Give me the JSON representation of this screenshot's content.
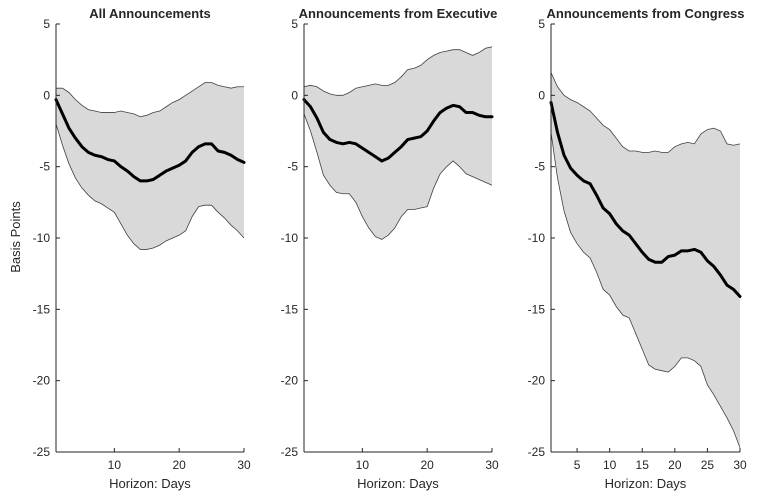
{
  "figure": {
    "ylabel": "Basis Points"
  },
  "colors": {
    "band_fill": "#d9d9d9",
    "band_edge": "#404040",
    "line": "#000000",
    "axis": "#262626"
  },
  "chart_data": [
    {
      "type": "area",
      "title": "All Announcements",
      "xlabel": "Horizon: Days",
      "ylabel": "Basis Points",
      "xlim": [
        1,
        30
      ],
      "ylim": [
        -25,
        5
      ],
      "xticks": [
        10,
        20,
        30
      ],
      "yticks": [
        5,
        0,
        -5,
        -10,
        -15,
        -20,
        -25
      ],
      "grid": false,
      "x": [
        1,
        2,
        3,
        4,
        5,
        6,
        7,
        8,
        9,
        10,
        11,
        12,
        13,
        14,
        15,
        16,
        17,
        18,
        19,
        20,
        21,
        22,
        23,
        24,
        25,
        26,
        27,
        28,
        29,
        30
      ],
      "series": [
        {
          "role": "point_estimate",
          "values": [
            -0.3,
            -1.3,
            -2.3,
            -3.0,
            -3.6,
            -4.0,
            -4.2,
            -4.3,
            -4.5,
            -4.6,
            -5.0,
            -5.3,
            -5.7,
            -6.0,
            -6.0,
            -5.9,
            -5.6,
            -5.3,
            -5.1,
            -4.9,
            -4.6,
            -4.0,
            -3.6,
            -3.4,
            -3.4,
            -3.9,
            -4.0,
            -4.2,
            -4.5,
            -4.7
          ]
        },
        {
          "role": "upper_bound",
          "values": [
            0.5,
            0.5,
            0.2,
            -0.3,
            -0.7,
            -1.0,
            -1.1,
            -1.2,
            -1.2,
            -1.2,
            -1.1,
            -1.2,
            -1.3,
            -1.5,
            -1.4,
            -1.2,
            -1.1,
            -0.8,
            -0.5,
            -0.3,
            0.0,
            0.3,
            0.6,
            0.9,
            0.9,
            0.7,
            0.6,
            0.5,
            0.6,
            0.6
          ]
        },
        {
          "role": "lower_bound",
          "values": [
            -2.0,
            -3.5,
            -4.8,
            -5.8,
            -6.5,
            -7.0,
            -7.4,
            -7.6,
            -7.9,
            -8.2,
            -9.0,
            -9.8,
            -10.4,
            -10.8,
            -10.8,
            -10.7,
            -10.5,
            -10.2,
            -10.0,
            -9.8,
            -9.5,
            -8.5,
            -7.8,
            -7.7,
            -7.7,
            -8.2,
            -8.6,
            -9.1,
            -9.5,
            -10.0
          ]
        }
      ]
    },
    {
      "type": "area",
      "title": "Announcements from Executive",
      "xlabel": "Horizon: Days",
      "ylabel": "",
      "xlim": [
        1,
        30
      ],
      "ylim": [
        -25,
        5
      ],
      "xticks": [
        10,
        20,
        30
      ],
      "yticks": [
        5,
        0,
        -5,
        -10,
        -15,
        -20,
        -25
      ],
      "grid": false,
      "x": [
        1,
        2,
        3,
        4,
        5,
        6,
        7,
        8,
        9,
        10,
        11,
        12,
        13,
        14,
        15,
        16,
        17,
        18,
        19,
        20,
        21,
        22,
        23,
        24,
        25,
        26,
        27,
        28,
        29,
        30
      ],
      "series": [
        {
          "role": "point_estimate",
          "values": [
            -0.3,
            -0.8,
            -1.6,
            -2.6,
            -3.1,
            -3.3,
            -3.4,
            -3.3,
            -3.4,
            -3.7,
            -4.0,
            -4.3,
            -4.6,
            -4.4,
            -4.0,
            -3.6,
            -3.1,
            -3.0,
            -2.9,
            -2.5,
            -1.8,
            -1.2,
            -0.9,
            -0.7,
            -0.8,
            -1.2,
            -1.2,
            -1.4,
            -1.5,
            -1.5
          ]
        },
        {
          "role": "upper_bound",
          "values": [
            0.6,
            0.7,
            0.6,
            0.3,
            0.1,
            0.0,
            0.0,
            0.2,
            0.5,
            0.6,
            0.7,
            0.8,
            0.7,
            0.7,
            0.9,
            1.3,
            1.8,
            1.9,
            2.1,
            2.5,
            2.8,
            3.0,
            3.1,
            3.2,
            3.2,
            3.0,
            2.8,
            3.0,
            3.3,
            3.4
          ]
        },
        {
          "role": "lower_bound",
          "values": [
            -1.3,
            -2.5,
            -4.0,
            -5.6,
            -6.3,
            -6.8,
            -6.9,
            -6.9,
            -7.5,
            -8.5,
            -9.3,
            -9.9,
            -10.1,
            -9.8,
            -9.3,
            -8.5,
            -8.0,
            -8.0,
            -7.9,
            -7.8,
            -6.5,
            -5.5,
            -5.0,
            -4.6,
            -5.0,
            -5.5,
            -5.7,
            -5.9,
            -6.1,
            -6.3
          ]
        }
      ]
    },
    {
      "type": "area",
      "title": "Announcements from Congress",
      "xlabel": "Horizon: Days",
      "ylabel": "",
      "xlim": [
        1,
        30
      ],
      "ylim": [
        -25,
        5
      ],
      "xticks": [
        5,
        10,
        15,
        20,
        25,
        30
      ],
      "yticks": [
        5,
        0,
        -5,
        -10,
        -15,
        -20,
        -25
      ],
      "grid": false,
      "x": [
        1,
        2,
        3,
        4,
        5,
        6,
        7,
        8,
        9,
        10,
        11,
        12,
        13,
        14,
        15,
        16,
        17,
        18,
        19,
        20,
        21,
        22,
        23,
        24,
        25,
        26,
        27,
        28,
        29,
        30
      ],
      "series": [
        {
          "role": "point_estimate",
          "values": [
            -0.5,
            -2.6,
            -4.2,
            -5.1,
            -5.6,
            -6.0,
            -6.2,
            -7.0,
            -7.9,
            -8.3,
            -9.0,
            -9.5,
            -9.8,
            -10.4,
            -11.0,
            -11.5,
            -11.7,
            -11.7,
            -11.3,
            -11.2,
            -10.9,
            -10.9,
            -10.8,
            -11.0,
            -11.6,
            -12.0,
            -12.6,
            -13.3,
            -13.6,
            -14.1
          ]
        },
        {
          "role": "upper_bound",
          "values": [
            1.6,
            0.6,
            0.0,
            -0.3,
            -0.5,
            -0.8,
            -1.1,
            -1.6,
            -2.1,
            -2.4,
            -3.0,
            -3.6,
            -3.9,
            -3.9,
            -4.0,
            -4.0,
            -3.9,
            -4.0,
            -4.0,
            -3.6,
            -3.4,
            -3.3,
            -3.4,
            -2.7,
            -2.4,
            -2.3,
            -2.5,
            -3.4,
            -3.5,
            -3.4
          ]
        },
        {
          "role": "lower_bound",
          "values": [
            -2.6,
            -5.8,
            -8.1,
            -9.6,
            -10.4,
            -11.0,
            -11.4,
            -12.4,
            -13.6,
            -14.0,
            -14.8,
            -15.4,
            -15.6,
            -16.7,
            -17.8,
            -18.9,
            -19.2,
            -19.3,
            -19.4,
            -19.0,
            -18.4,
            -18.4,
            -18.6,
            -19.0,
            -20.3,
            -21.0,
            -21.8,
            -22.6,
            -23.5,
            -24.7
          ]
        }
      ]
    }
  ]
}
